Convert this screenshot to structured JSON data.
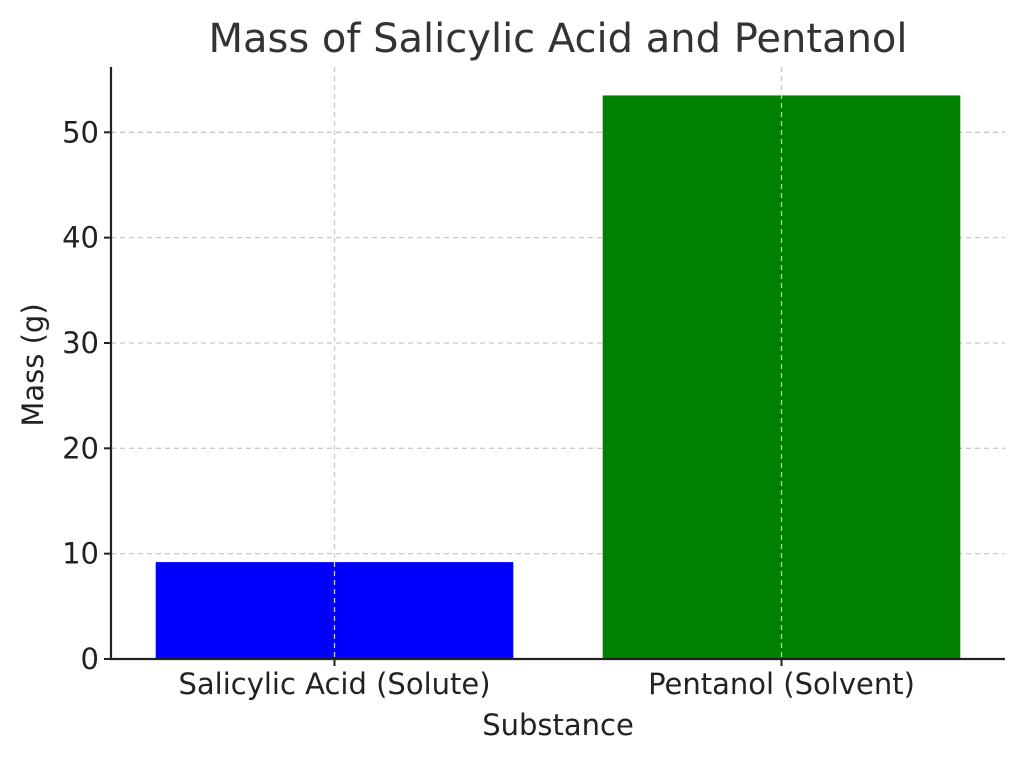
{
  "chart_data": {
    "type": "bar",
    "title": "Mass of Salicylic Acid and Pentanol",
    "xlabel": "Substance",
    "ylabel": "Mass (g)",
    "categories": [
      "Salicylic Acid (Solute)",
      "Pentanol (Solvent)"
    ],
    "values": [
      9.2,
      53.5
    ],
    "colors": [
      "#0000ff",
      "#008000"
    ],
    "ylim": [
      0,
      56.2
    ],
    "yticks": [
      0,
      10,
      20,
      30,
      40,
      50
    ],
    "grid": true
  }
}
